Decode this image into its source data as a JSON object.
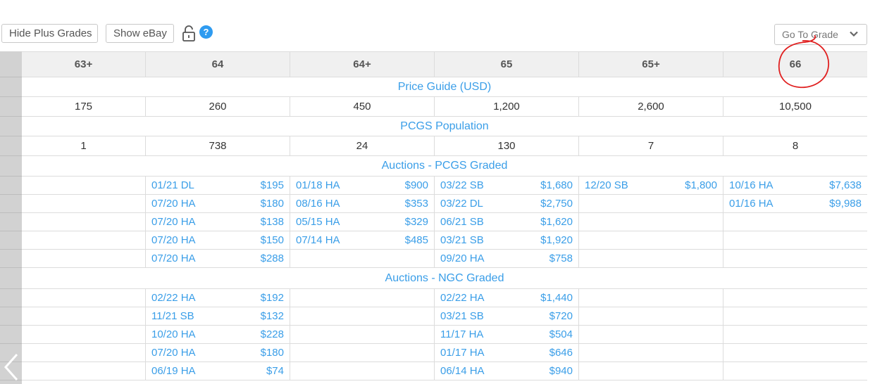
{
  "toolbar": {
    "hide_plus_label": "Hide Plus Grades",
    "show_ebay_label": "Show eBay",
    "help_label": "?",
    "goto_label": "Go To Grade"
  },
  "grades": [
    "63+",
    "64",
    "64+",
    "65",
    "65+",
    "66"
  ],
  "sections": {
    "price_guide": "Price Guide (USD)",
    "population": "PCGS Population",
    "auctions_pcgs": "Auctions - PCGS Graded",
    "auctions_ngc": "Auctions - NGC Graded"
  },
  "prices": [
    "175",
    "260",
    "450",
    "1,200",
    "2,600",
    "10,500"
  ],
  "populations": [
    "1",
    "738",
    "24",
    "130",
    "7",
    "8"
  ],
  "auctions_pcgs": [
    [
      null,
      {
        "d": "01/21 DL",
        "p": "$195"
      },
      {
        "d": "01/18 HA",
        "p": "$900"
      },
      {
        "d": "03/22 SB",
        "p": "$1,680"
      },
      {
        "d": "12/20 SB",
        "p": "$1,800"
      },
      {
        "d": "10/16 HA",
        "p": "$7,638"
      }
    ],
    [
      null,
      {
        "d": "07/20 HA",
        "p": "$180"
      },
      {
        "d": "08/16 HA",
        "p": "$353"
      },
      {
        "d": "03/22 DL",
        "p": "$2,750"
      },
      null,
      {
        "d": "01/16 HA",
        "p": "$9,988"
      }
    ],
    [
      null,
      {
        "d": "07/20 HA",
        "p": "$138"
      },
      {
        "d": "05/15 HA",
        "p": "$329"
      },
      {
        "d": "06/21 SB",
        "p": "$1,620"
      },
      null,
      null
    ],
    [
      null,
      {
        "d": "07/20 HA",
        "p": "$150"
      },
      {
        "d": "07/14 HA",
        "p": "$485"
      },
      {
        "d": "03/21 SB",
        "p": "$1,920"
      },
      null,
      null
    ],
    [
      null,
      {
        "d": "07/20 HA",
        "p": "$288"
      },
      null,
      {
        "d": "09/20 HA",
        "p": "$758"
      },
      null,
      null
    ]
  ],
  "auctions_ngc": [
    [
      null,
      {
        "d": "02/22 HA",
        "p": "$192"
      },
      null,
      {
        "d": "02/22 HA",
        "p": "$1,440"
      },
      null,
      null
    ],
    [
      null,
      {
        "d": "11/21 SB",
        "p": "$132"
      },
      null,
      {
        "d": "03/21 SB",
        "p": "$720"
      },
      null,
      null
    ],
    [
      null,
      {
        "d": "10/20 HA",
        "p": "$228"
      },
      null,
      {
        "d": "11/17 HA",
        "p": "$504"
      },
      null,
      null
    ],
    [
      null,
      {
        "d": "07/20 HA",
        "p": "$180"
      },
      null,
      {
        "d": "01/17 HA",
        "p": "$646"
      },
      null,
      null
    ],
    [
      null,
      {
        "d": "06/19 HA",
        "p": "$74"
      },
      null,
      {
        "d": "06/14 HA",
        "p": "$940"
      },
      null,
      null
    ]
  ],
  "colors": {
    "link": "#3a9ee8",
    "header_bg": "#f0f0f0",
    "sidebar": "#d2d2d2",
    "annotation": "#e02020",
    "help": "#2e9bf0"
  },
  "icons": [
    "lock-open-icon",
    "help-icon",
    "chevron-down-icon",
    "chevron-left-icon"
  ]
}
